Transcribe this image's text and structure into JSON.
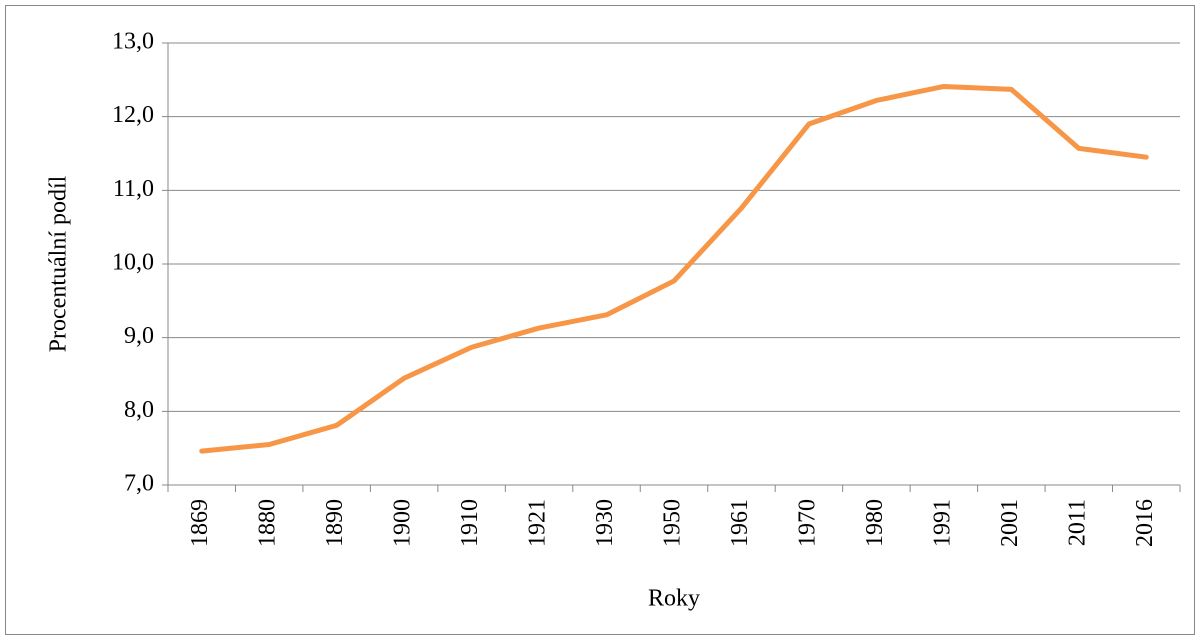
{
  "chart_data": {
    "type": "line",
    "categories": [
      "1869",
      "1880",
      "1890",
      "1900",
      "1910",
      "1921",
      "1930",
      "1950",
      "1961",
      "1970",
      "1980",
      "1991",
      "2001",
      "2011",
      "2016"
    ],
    "values": [
      7.46,
      7.55,
      7.81,
      8.45,
      8.87,
      9.13,
      9.31,
      9.77,
      10.76,
      11.9,
      12.22,
      12.41,
      12.37,
      11.57,
      11.45
    ],
    "color": "#f79646",
    "xlabel": "Roky",
    "ylabel": "Procentuální podíl",
    "ylim": [
      7,
      13
    ],
    "yticks": [
      {
        "value": 7,
        "label": "7,0"
      },
      {
        "value": 8,
        "label": "8,0"
      },
      {
        "value": 9,
        "label": "9,0"
      },
      {
        "value": 10,
        "label": "10,0"
      },
      {
        "value": 11,
        "label": "11,0"
      },
      {
        "value": 12,
        "label": "12,0"
      },
      {
        "value": 13,
        "label": "13,0"
      }
    ],
    "grid": true
  }
}
